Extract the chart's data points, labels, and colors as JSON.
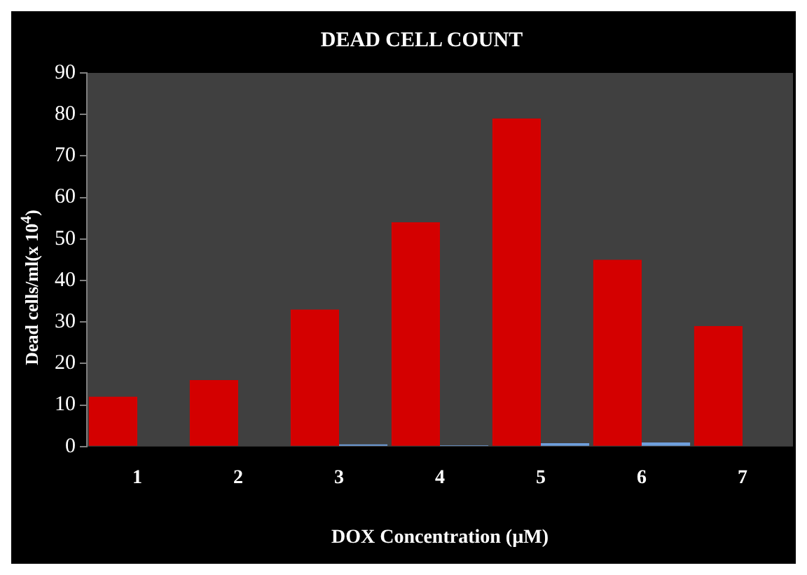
{
  "chart_data": {
    "type": "bar",
    "title": "DEAD CELL COUNT",
    "xlabel": "DOX Concentration (µM)",
    "ylabel": "Dead cells/ml(x 10$^{4}$)",
    "categories": [
      "1",
      "2",
      "3",
      "4",
      "5",
      "6",
      "7"
    ],
    "series": [
      {
        "color": "#d40000",
        "values": [
          12,
          16,
          33,
          54,
          79,
          45,
          29
        ]
      },
      {
        "color": "#6f9fdc",
        "values": [
          0,
          0,
          0.5,
          0.3,
          0.8,
          1,
          0
        ]
      }
    ],
    "ylim": [
      0,
      90
    ],
    "yticks": [
      0,
      10,
      20,
      30,
      40,
      50,
      60,
      70,
      80,
      90
    ],
    "grid": false,
    "legend": false
  }
}
